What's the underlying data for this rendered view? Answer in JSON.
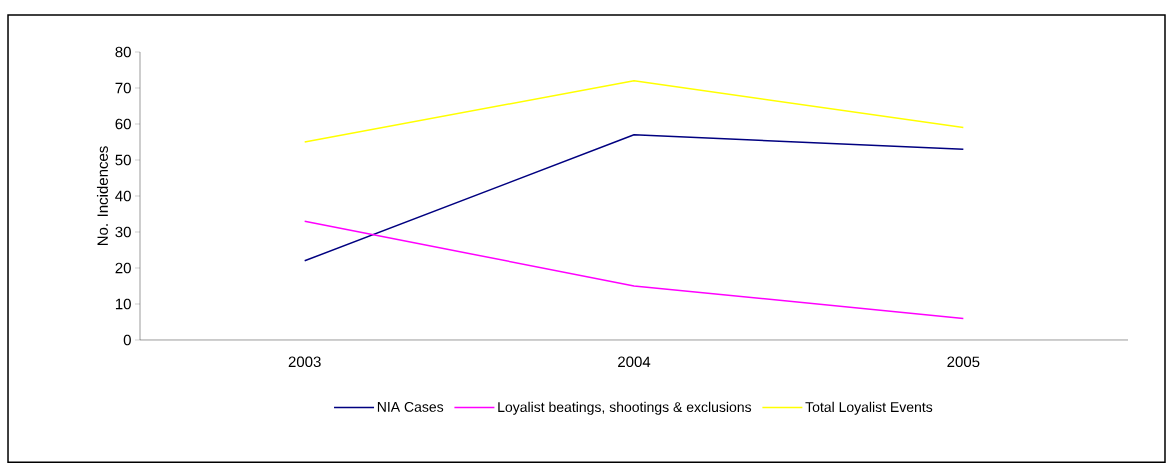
{
  "chart_data": {
    "type": "line",
    "ylabel": "No. Incidences",
    "categories": [
      "2003",
      "2004",
      "2005"
    ],
    "series": [
      {
        "name": "NIA Cases",
        "color": "#000080",
        "values": [
          22,
          57,
          53
        ]
      },
      {
        "name": "Loyalist beatings, shootings & exclusions",
        "color": "#ff00ff",
        "values": [
          33,
          15,
          6
        ]
      },
      {
        "name": "Total Loyalist Events",
        "color": "#ffff00",
        "values": [
          55,
          72,
          59
        ]
      }
    ],
    "ylim": [
      0,
      80
    ],
    "yticks": [
      0,
      10,
      20,
      30,
      40,
      50,
      60,
      70,
      80
    ],
    "legend": "bottom"
  }
}
